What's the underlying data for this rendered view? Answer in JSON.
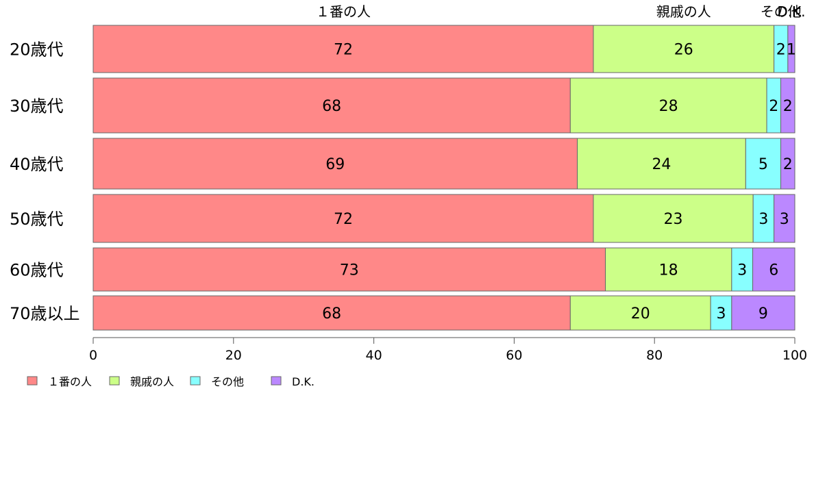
{
  "chart_data": {
    "type": "bar",
    "orientation": "horizontal",
    "stacked": true,
    "categories": [
      "20歳代",
      "30歳代",
      "40歳代",
      "50歳代",
      "60歳代",
      "70歳以上"
    ],
    "series": [
      {
        "name": "１番の人",
        "color": "#FF8888",
        "values": [
          72,
          68,
          69,
          72,
          73,
          68
        ]
      },
      {
        "name": "親戚の人",
        "color": "#CCFF88",
        "values": [
          26,
          28,
          24,
          23,
          18,
          20
        ]
      },
      {
        "name": "その他",
        "color": "#88FFFF",
        "values": [
          2,
          2,
          5,
          3,
          3,
          3
        ]
      },
      {
        "name": "D.K.",
        "color": "#BB88FF",
        "values": [
          1,
          2,
          2,
          3,
          6,
          9
        ]
      }
    ],
    "top_labels": [
      "１番の人",
      "親戚の人",
      "その他",
      "D.K."
    ],
    "xlim": [
      0,
      100
    ],
    "xticks": [
      0,
      20,
      40,
      60,
      80,
      100
    ],
    "legend_position": "bottom-left",
    "grid": false
  }
}
